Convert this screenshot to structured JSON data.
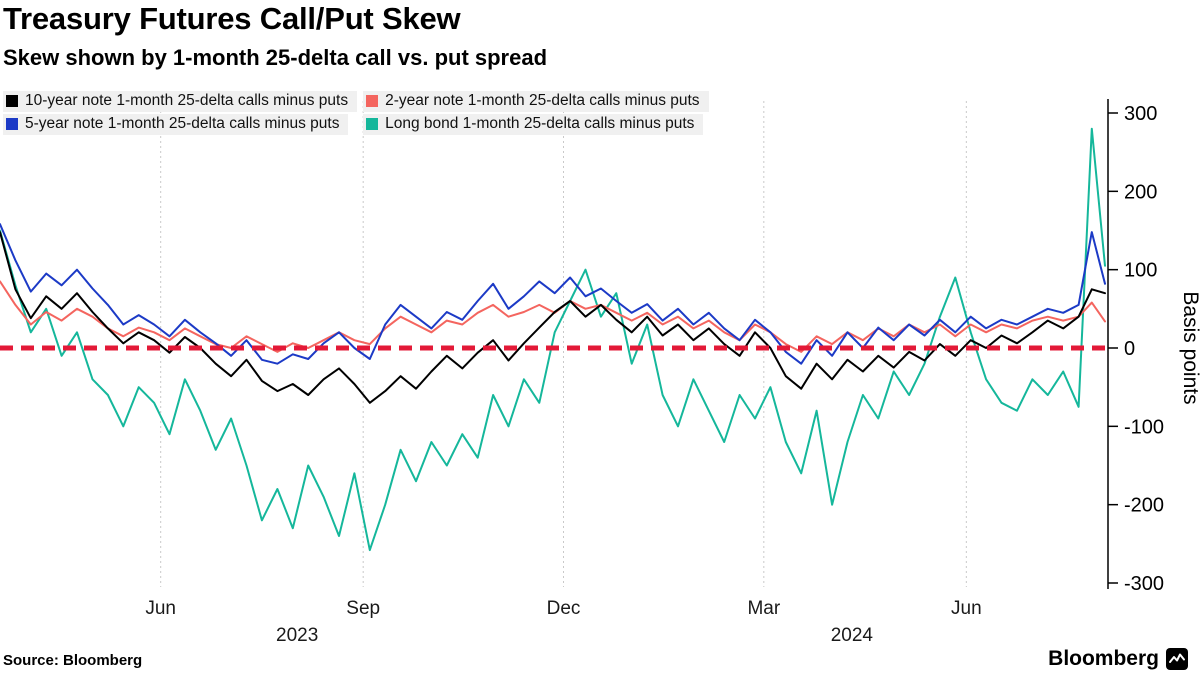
{
  "header": {
    "title": "Treasury Futures Call/Put Skew",
    "subtitle": "Skew shown by 1-month 25-delta call vs. put spread"
  },
  "legend": {
    "items": [
      {
        "label": "10-year note 1-month 25-delta calls minus puts",
        "color": "#000000"
      },
      {
        "label": "2-year note 1-month 25-delta calls minus puts",
        "color": "#f4655f"
      },
      {
        "label": "5-year note 1-month 25-delta calls minus puts",
        "color": "#1c3ac6"
      },
      {
        "label": "Long bond 1-month 25-delta calls minus puts",
        "color": "#15b79b"
      }
    ]
  },
  "footer": {
    "source": "Source: Bloomberg",
    "logo": "Bloomberg"
  },
  "chart_data": {
    "type": "line",
    "title": "Treasury Futures Call/Put Skew",
    "subtitle": "Skew shown by 1-month 25-delta call vs. put spread",
    "ylabel": "Basis points",
    "ylim": [
      -300,
      300
    ],
    "y_ticks": [
      300,
      200,
      100,
      0,
      -100,
      -200,
      -300
    ],
    "grid": true,
    "grid_color": "#c9c9c9",
    "legend_position": "top-left",
    "zero_line": {
      "value": 0,
      "color": "#e31937",
      "style": "dashed"
    },
    "x_unit": "days since 2023-03-20",
    "x": [
      0,
      7,
      14,
      21,
      28,
      35,
      42,
      49,
      56,
      63,
      70,
      77,
      84,
      91,
      98,
      105,
      112,
      119,
      126,
      133,
      140,
      147,
      154,
      161,
      168,
      175,
      182,
      189,
      196,
      203,
      210,
      217,
      224,
      231,
      238,
      245,
      252,
      259,
      266,
      273,
      280,
      287,
      294,
      301,
      308,
      315,
      322,
      329,
      336,
      343,
      350,
      357,
      364,
      371,
      378,
      385,
      392,
      399,
      406,
      413,
      420,
      427,
      434,
      441,
      448,
      455,
      462,
      469,
      476,
      483,
      490,
      496,
      502
    ],
    "x_ticks": [
      {
        "day": 73,
        "label": "Jun"
      },
      {
        "day": 165,
        "label": "Sep"
      },
      {
        "day": 256,
        "label": "Dec"
      },
      {
        "day": 347,
        "label": "Mar"
      },
      {
        "day": 439,
        "label": "Jun"
      }
    ],
    "year_labels": [
      {
        "day": 135,
        "label": "2023"
      },
      {
        "day": 387,
        "label": "2024"
      }
    ],
    "series": [
      {
        "key": "long-bond",
        "name": "Long bond 1-month 25-delta calls minus puts",
        "color": "#15b79b",
        "values": [
          150,
          80,
          20,
          50,
          -10,
          20,
          -40,
          -60,
          -100,
          -50,
          -70,
          -110,
          -40,
          -80,
          -130,
          -90,
          -150,
          -220,
          -180,
          -230,
          -150,
          -190,
          -240,
          -160,
          -258,
          -200,
          -130,
          -170,
          -120,
          -150,
          -110,
          -140,
          -60,
          -100,
          -40,
          -70,
          20,
          60,
          100,
          40,
          70,
          -20,
          30,
          -60,
          -100,
          -40,
          -80,
          -120,
          -60,
          -90,
          -50,
          -120,
          -160,
          -80,
          -200,
          -120,
          -60,
          -90,
          -30,
          -60,
          -20,
          40,
          90,
          20,
          -40,
          -70,
          -80,
          -40,
          -60,
          -30,
          -75,
          280,
          105
        ]
      },
      {
        "key": "2-year-note",
        "name": "2-year note 1-month 25-delta calls minus puts",
        "color": "#f4655f",
        "values": [
          85,
          55,
          30,
          46,
          35,
          50,
          40,
          25,
          15,
          26,
          20,
          10,
          25,
          15,
          5,
          0,
          15,
          5,
          -5,
          6,
          0,
          10,
          20,
          10,
          5,
          25,
          40,
          30,
          20,
          35,
          30,
          45,
          55,
          40,
          46,
          55,
          45,
          60,
          50,
          55,
          45,
          35,
          45,
          30,
          40,
          25,
          35,
          20,
          10,
          30,
          20,
          5,
          -5,
          15,
          5,
          20,
          10,
          25,
          15,
          30,
          20,
          30,
          15,
          30,
          20,
          30,
          25,
          35,
          40,
          35,
          40,
          58,
          34
        ]
      },
      {
        "key": "5-year-note",
        "name": "5-year note 1-month 25-delta calls minus puts",
        "color": "#1c3ac6",
        "values": [
          158,
          112,
          72,
          95,
          80,
          100,
          76,
          55,
          30,
          42,
          30,
          15,
          36,
          20,
          6,
          -10,
          10,
          -15,
          -20,
          -8,
          -14,
          6,
          20,
          0,
          -14,
          30,
          55,
          40,
          25,
          46,
          36,
          60,
          82,
          50,
          66,
          85,
          70,
          90,
          66,
          76,
          60,
          45,
          56,
          35,
          50,
          30,
          45,
          25,
          10,
          36,
          20,
          -5,
          -20,
          10,
          -10,
          20,
          0,
          26,
          10,
          30,
          16,
          36,
          20,
          40,
          25,
          36,
          30,
          40,
          50,
          45,
          55,
          148,
          82
        ]
      },
      {
        "key": "10-year-note",
        "name": "10-year note 1-month 25-delta calls minus puts",
        "color": "#000000",
        "values": [
          148,
          75,
          38,
          66,
          50,
          70,
          46,
          25,
          6,
          20,
          10,
          -6,
          14,
          0,
          -20,
          -36,
          -15,
          -42,
          -55,
          -46,
          -60,
          -40,
          -26,
          -46,
          -70,
          -55,
          -36,
          -52,
          -30,
          -10,
          -26,
          -6,
          10,
          -16,
          6,
          26,
          46,
          60,
          40,
          55,
          36,
          20,
          40,
          16,
          30,
          10,
          25,
          5,
          -10,
          20,
          0,
          -36,
          -52,
          -20,
          -40,
          -15,
          -30,
          -10,
          -25,
          -5,
          -16,
          5,
          -10,
          10,
          0,
          16,
          6,
          20,
          35,
          25,
          40,
          75,
          70
        ]
      }
    ]
  }
}
